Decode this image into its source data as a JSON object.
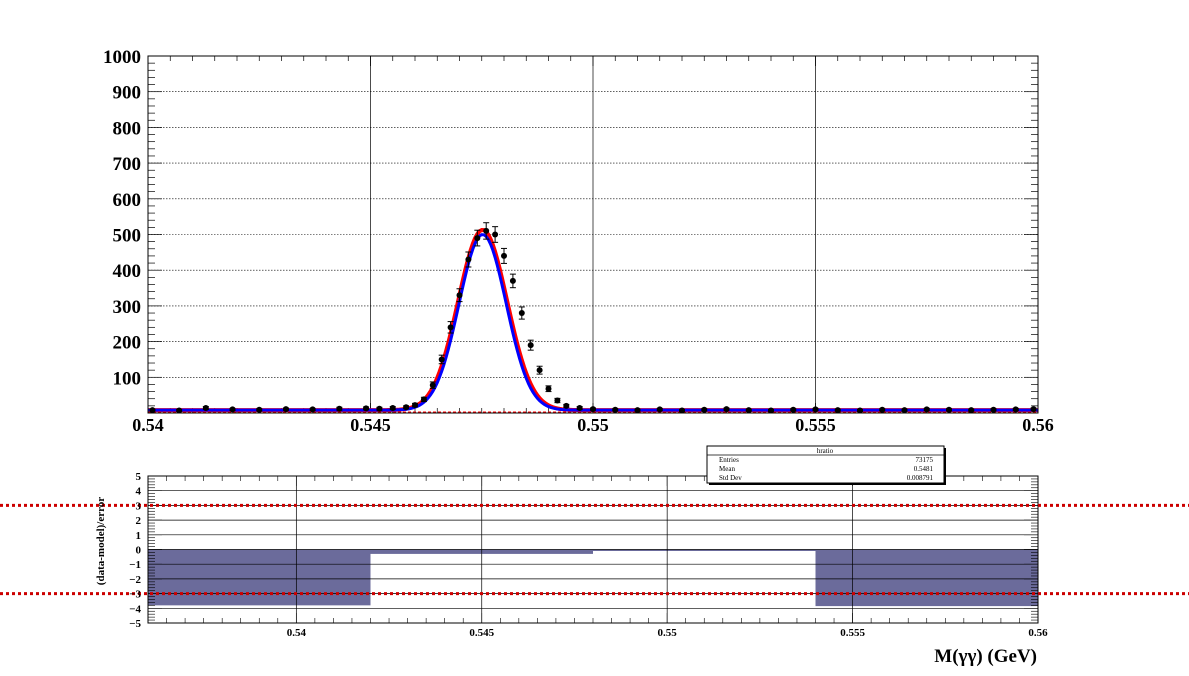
{
  "chart_data": [
    {
      "type": "scatter",
      "xlabel": "",
      "ylabel": "",
      "xlim": [
        0.54,
        0.56
      ],
      "ylim": [
        0,
        1000
      ],
      "x_ticks": [
        0.54,
        0.545,
        0.55,
        0.555,
        0.56
      ],
      "x_tick_labels": [
        "0.54",
        "0.545",
        "0.55",
        "0.555",
        "0.56"
      ],
      "y_ticks": [
        100,
        200,
        300,
        400,
        500,
        600,
        700,
        800,
        900,
        1000
      ],
      "y_tick_labels": [
        "100",
        "200",
        "300",
        "400",
        "500",
        "600",
        "700",
        "800",
        "900",
        "1000"
      ],
      "grid": true,
      "series": [
        {
          "kind": "points-with-errors",
          "color": "#000000",
          "x": [
            0.5401,
            0.5407,
            0.5413,
            0.5419,
            0.5425,
            0.5431,
            0.5437,
            0.5443,
            0.5449,
            0.5452,
            0.5455,
            0.5458,
            0.546,
            0.5462,
            0.5464,
            0.5466,
            0.5468,
            0.547,
            0.5472,
            0.5474,
            0.5476,
            0.5478,
            0.548,
            0.5482,
            0.5484,
            0.5486,
            0.5488,
            0.549,
            0.5492,
            0.5494,
            0.5497,
            0.55,
            0.5505,
            0.551,
            0.5515,
            0.552,
            0.5525,
            0.553,
            0.5535,
            0.554,
            0.5545,
            0.555,
            0.5555,
            0.556,
            0.5565,
            0.557,
            0.5575,
            0.558,
            0.5585,
            0.559,
            0.5595,
            0.5599
          ],
          "y": [
            8,
            7,
            14,
            10,
            9,
            11,
            10,
            12,
            13,
            12,
            14,
            16,
            22,
            38,
            78,
            150,
            240,
            330,
            430,
            490,
            510,
            500,
            440,
            370,
            280,
            190,
            120,
            68,
            35,
            20,
            14,
            11,
            9,
            8,
            10,
            7,
            9,
            11,
            8,
            7,
            9,
            10,
            8,
            7,
            9,
            8,
            10,
            9,
            8,
            9,
            10,
            11
          ],
          "err": [
            3,
            3,
            4,
            3,
            3,
            3,
            3,
            4,
            4,
            4,
            4,
            4,
            5,
            6,
            9,
            12,
            16,
            18,
            21,
            22,
            23,
            22,
            21,
            19,
            17,
            14,
            11,
            8,
            6,
            4,
            4,
            3,
            3,
            3,
            3,
            3,
            3,
            3,
            3,
            3,
            3,
            3,
            3,
            3,
            3,
            3,
            3,
            3,
            3,
            3,
            3,
            3
          ]
        },
        {
          "kind": "fit-curve",
          "color": "#ff0000",
          "mean": 0.54752,
          "sigma": 0.00055,
          "amplitude": 505,
          "baseline": 8
        },
        {
          "kind": "fit-curve",
          "color": "#0000ff",
          "mean": 0.54752,
          "sigma": 0.00053,
          "amplitude": 492,
          "baseline": 8
        },
        {
          "kind": "background-line",
          "color": "#ff0000",
          "y": 2
        }
      ]
    },
    {
      "type": "bar",
      "ylabel": "(data-model)/error",
      "xlabel": "M(γγ) (GeV)",
      "xlim": [
        0.536,
        0.56
      ],
      "ylim": [
        -5,
        5
      ],
      "x_ticks": [
        0.54,
        0.545,
        0.55,
        0.555,
        0.56
      ],
      "x_tick_labels": [
        "0.54",
        "0.545",
        "0.55",
        "0.555",
        "0.56"
      ],
      "y_ticks": [
        -5,
        -4,
        -3,
        -2,
        -1,
        0,
        1,
        2,
        3,
        4,
        5
      ],
      "y_tick_labels": [
        "−5",
        "−4",
        "−3",
        "−2",
        "−1",
        "0",
        "1",
        "2",
        "3",
        "4",
        "5"
      ],
      "grid": true,
      "bar_color": "#6b6b9b",
      "bins": [
        {
          "x0": 0.536,
          "x1": 0.542,
          "value": -3.8
        },
        {
          "x0": 0.542,
          "x1": 0.548,
          "value": -0.3
        },
        {
          "x0": 0.548,
          "x1": 0.554,
          "value": -0.05
        },
        {
          "x0": 0.554,
          "x1": 0.56,
          "value": -3.85
        }
      ],
      "reference_lines": {
        "values": [
          3,
          -3
        ],
        "color": "#cc0000",
        "style": "dotted"
      }
    }
  ],
  "stats_box": {
    "title": "hratio",
    "rows": [
      {
        "label": "Entries",
        "value": "73175"
      },
      {
        "label": "Mean",
        "value": "0.5481"
      },
      {
        "label": "Std Dev",
        "value": "0.008791"
      }
    ]
  }
}
